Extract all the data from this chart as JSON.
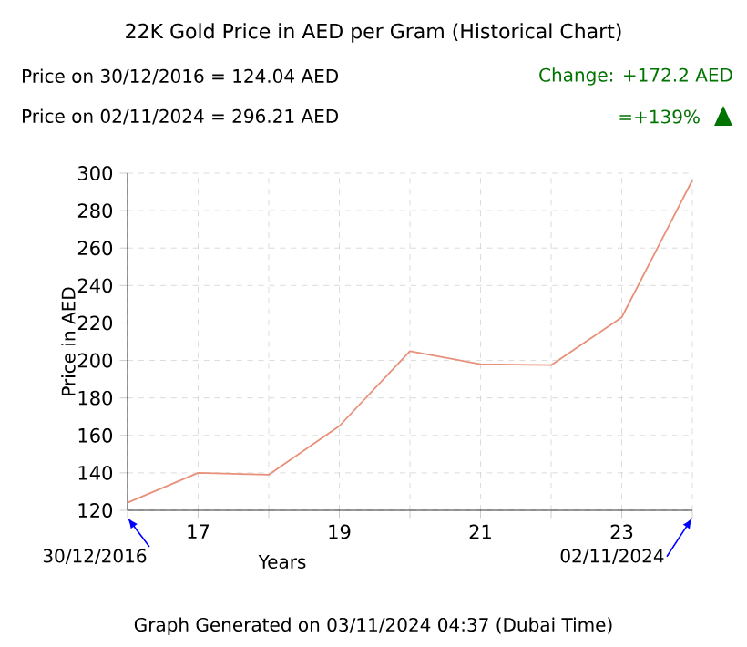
{
  "chart_data": {
    "type": "line",
    "title": "22K Gold Price in AED per Gram (Historical Chart)",
    "xlabel": "Years",
    "ylabel": "Price in AED",
    "annotations": [
      "Price on 30/12/2016 = 124.04 AED",
      "Price on 02/11/2024 = 296.21 AED",
      "Change: +172.2 AED",
      "=+139%",
      "Graph Generated on 03/11/2024 04:37 (Dubai Time)",
      "30/12/2016",
      "02/11/2024"
    ],
    "x": [
      16,
      17,
      18,
      19,
      20,
      21,
      22,
      23,
      24
    ],
    "series": [
      {
        "color": "#e8907a",
        "values": [
          124.04,
          140,
          139,
          165,
          205,
          198,
          197.5,
          223,
          296.21
        ]
      }
    ],
    "xlim": [
      16,
      24
    ],
    "ylim": [
      120,
      300
    ],
    "xticks": [
      {
        "value": 16,
        "label": null
      },
      17,
      {
        "value": 18,
        "label": null
      },
      19,
      {
        "value": 20,
        "label": null
      },
      21,
      {
        "value": 22,
        "label": null
      },
      23,
      {
        "value": 24,
        "label": null
      }
    ],
    "yticks": [
      120,
      140,
      160,
      180,
      200,
      220,
      240,
      260,
      280,
      300
    ],
    "grid": true,
    "marker": "none",
    "line_style": "solid"
  }
}
